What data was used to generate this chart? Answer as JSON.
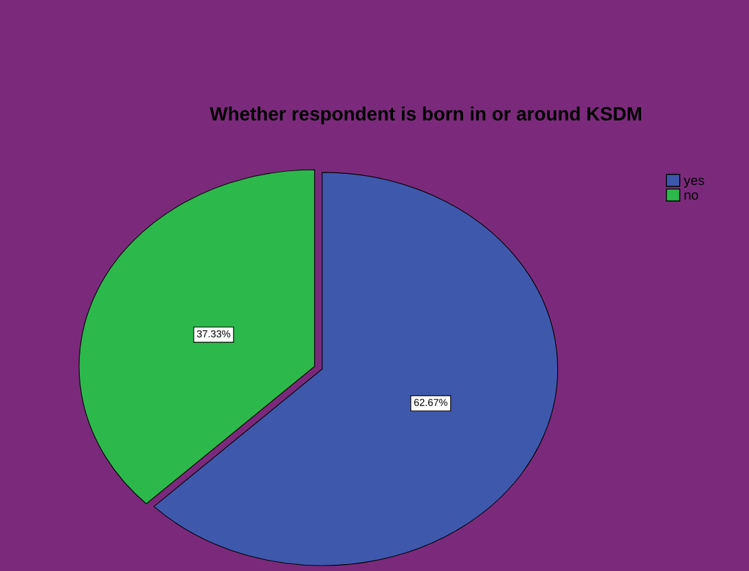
{
  "chart_data": {
    "type": "pie",
    "title": "Whether respondent is born in or around KSDM",
    "categories": [
      "yes",
      "no"
    ],
    "values": [
      62.67,
      37.33
    ],
    "colors": [
      "#3e58ac",
      "#2db84b"
    ],
    "value_labels": [
      "62.67%",
      "37.33%"
    ],
    "legend": "top right"
  }
}
